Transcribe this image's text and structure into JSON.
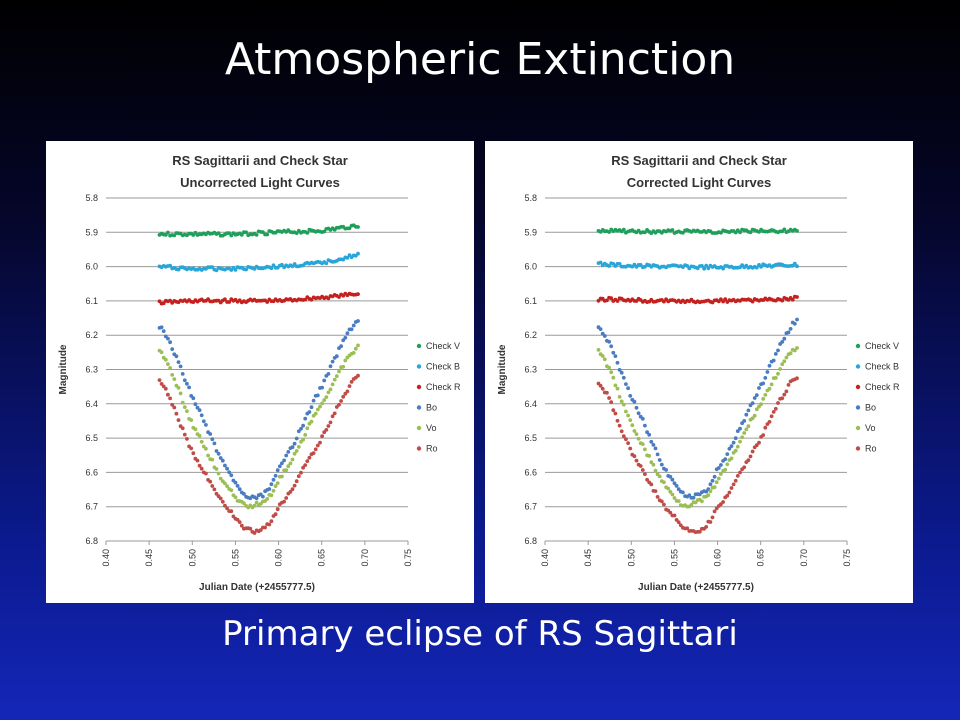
{
  "slide": {
    "title": "Atmospheric Extinction",
    "caption": "Primary eclipse of RS Sagittari"
  },
  "chart_data": [
    {
      "type": "scatter",
      "title": "RS Sagittarii and Check Star",
      "subtitle": "Uncorrected Light Curves",
      "xlabel": "Julian Date (+2455777.5)",
      "ylabel": "Magnitude",
      "xlim": [
        0.4,
        0.75
      ],
      "ylim": [
        5.8,
        6.8
      ],
      "y_inverted": true,
      "x_ticks": [
        "0.40",
        "0.45",
        "0.50",
        "0.55",
        "0.60",
        "0.65",
        "0.70",
        "0.75"
      ],
      "y_ticks": [
        "5.8",
        "5.9",
        "6.0",
        "6.1",
        "6.2",
        "6.3",
        "6.4",
        "6.5",
        "6.6",
        "6.7",
        "6.8"
      ],
      "grid": true,
      "legend": "right",
      "series": [
        {
          "name": "Check V",
          "color": "#1fa05a",
          "kind": "flat",
          "x": [
            0.462,
            0.5,
            0.55,
            0.6,
            0.65,
            0.692
          ],
          "y": [
            5.905,
            5.905,
            5.905,
            5.9,
            5.895,
            5.88
          ]
        },
        {
          "name": "Check B",
          "color": "#27a6d9",
          "kind": "flat",
          "x": [
            0.462,
            0.5,
            0.55,
            0.6,
            0.65,
            0.692
          ],
          "y": [
            6.0,
            6.007,
            6.005,
            6.0,
            5.99,
            5.965
          ]
        },
        {
          "name": "Check R",
          "color": "#c4211f",
          "kind": "flat",
          "x": [
            0.462,
            0.5,
            0.55,
            0.6,
            0.65,
            0.692
          ],
          "y": [
            6.105,
            6.1,
            6.1,
            6.1,
            6.09,
            6.08
          ]
        },
        {
          "name": "Bo",
          "color": "#4a7cc1",
          "kind": "curve",
          "x": [
            0.462,
            0.5,
            0.55,
            0.578,
            0.6,
            0.65,
            0.692
          ],
          "y": [
            6.175,
            6.38,
            6.63,
            6.67,
            6.59,
            6.35,
            6.155
          ]
        },
        {
          "name": "Vo",
          "color": "#9bbe55",
          "kind": "curve",
          "x": [
            0.462,
            0.5,
            0.55,
            0.578,
            0.6,
            0.65,
            0.692
          ],
          "y": [
            6.245,
            6.46,
            6.67,
            6.69,
            6.62,
            6.4,
            6.235
          ]
        },
        {
          "name": "Ro",
          "color": "#c04b47",
          "kind": "curve",
          "x": [
            0.462,
            0.5,
            0.55,
            0.578,
            0.6,
            0.65,
            0.692
          ],
          "y": [
            6.335,
            6.54,
            6.73,
            6.77,
            6.7,
            6.5,
            6.32
          ]
        }
      ]
    },
    {
      "type": "scatter",
      "title": "RS Sagittarii and Check Star",
      "subtitle": "Corrected Light Curves",
      "xlabel": "Julian Date (+2455777.5)",
      "ylabel": "Magnitude",
      "xlim": [
        0.4,
        0.75
      ],
      "ylim": [
        5.8,
        6.8
      ],
      "y_inverted": true,
      "x_ticks": [
        "0.40",
        "0.45",
        "0.50",
        "0.55",
        "0.60",
        "0.65",
        "0.70",
        "0.75"
      ],
      "y_ticks": [
        "5.8",
        "5.9",
        "6.0",
        "6.1",
        "6.2",
        "6.3",
        "6.4",
        "6.5",
        "6.6",
        "6.7",
        "6.8"
      ],
      "grid": true,
      "legend": "right",
      "series": [
        {
          "name": "Check V",
          "color": "#1fa05a",
          "kind": "flat",
          "x": [
            0.462,
            0.5,
            0.55,
            0.6,
            0.65,
            0.692
          ],
          "y": [
            5.895,
            5.897,
            5.898,
            5.898,
            5.896,
            5.895
          ]
        },
        {
          "name": "Check B",
          "color": "#27a6d9",
          "kind": "flat",
          "x": [
            0.462,
            0.5,
            0.55,
            0.6,
            0.65,
            0.692
          ],
          "y": [
            5.992,
            5.998,
            6.0,
            6.002,
            5.998,
            5.995
          ]
        },
        {
          "name": "Check R",
          "color": "#c4211f",
          "kind": "flat",
          "x": [
            0.462,
            0.5,
            0.55,
            0.6,
            0.65,
            0.692
          ],
          "y": [
            6.095,
            6.098,
            6.1,
            6.1,
            6.098,
            6.092
          ]
        },
        {
          "name": "Bo",
          "color": "#4a7cc1",
          "kind": "curve",
          "x": [
            0.462,
            0.5,
            0.55,
            0.578,
            0.6,
            0.65,
            0.692
          ],
          "y": [
            6.175,
            6.38,
            6.63,
            6.665,
            6.59,
            6.35,
            6.155
          ]
        },
        {
          "name": "Vo",
          "color": "#9bbe55",
          "kind": "curve",
          "x": [
            0.462,
            0.5,
            0.55,
            0.578,
            0.6,
            0.65,
            0.692
          ],
          "y": [
            6.245,
            6.46,
            6.67,
            6.685,
            6.62,
            6.4,
            6.235
          ]
        },
        {
          "name": "Ro",
          "color": "#c04b47",
          "kind": "curve",
          "x": [
            0.462,
            0.5,
            0.55,
            0.578,
            0.6,
            0.65,
            0.692
          ],
          "y": [
            6.335,
            6.54,
            6.73,
            6.77,
            6.7,
            6.5,
            6.32
          ]
        }
      ]
    }
  ]
}
